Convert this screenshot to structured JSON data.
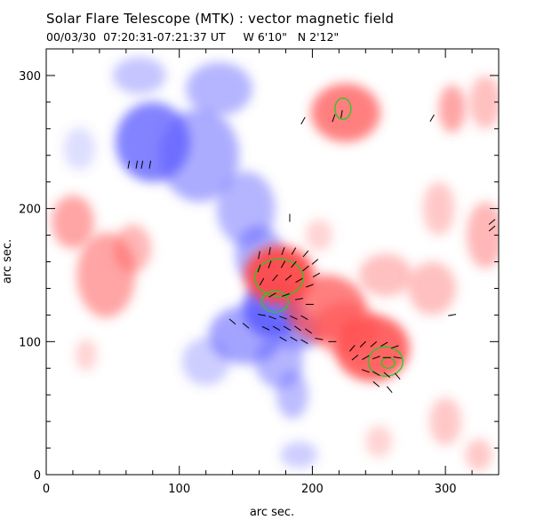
{
  "title": "Solar Flare Telescope (MTK) : vector magnetic field",
  "subtitle": "00/03/30  07:20:31-07:21:37 UT     W 6'10\"   N 2'12\"",
  "chart_data": {
    "type": "heatmap",
    "title": "Solar Flare Telescope (MTK) : vector magnetic field",
    "xlabel": "arc sec.",
    "ylabel": "arc sec.",
    "xlim": [
      0,
      340
    ],
    "ylim": [
      0,
      320
    ],
    "xticks": [
      0,
      100,
      200,
      300
    ],
    "yticks": [
      0,
      100,
      200,
      300
    ],
    "colors": {
      "positive": "#ff4a4a",
      "negative": "#5a5aff",
      "vectors": "#000000",
      "contour": "#22cc22"
    },
    "positive_regions": [
      {
        "x": 225,
        "y": 272,
        "rx": 26,
        "ry": 22,
        "a": 0.7
      },
      {
        "x": 305,
        "y": 275,
        "rx": 10,
        "ry": 18,
        "a": 0.5
      },
      {
        "x": 330,
        "y": 280,
        "rx": 12,
        "ry": 20,
        "a": 0.35
      },
      {
        "x": 20,
        "y": 190,
        "rx": 16,
        "ry": 20,
        "a": 0.5
      },
      {
        "x": 45,
        "y": 150,
        "rx": 22,
        "ry": 32,
        "a": 0.5
      },
      {
        "x": 65,
        "y": 170,
        "rx": 14,
        "ry": 18,
        "a": 0.4
      },
      {
        "x": 175,
        "y": 150,
        "rx": 26,
        "ry": 22,
        "a": 0.95
      },
      {
        "x": 210,
        "y": 125,
        "rx": 30,
        "ry": 25,
        "a": 0.7
      },
      {
        "x": 245,
        "y": 95,
        "rx": 28,
        "ry": 25,
        "a": 0.85
      },
      {
        "x": 225,
        "y": 110,
        "rx": 25,
        "ry": 20,
        "a": 0.5
      },
      {
        "x": 255,
        "y": 150,
        "rx": 20,
        "ry": 16,
        "a": 0.35
      },
      {
        "x": 290,
        "y": 140,
        "rx": 18,
        "ry": 20,
        "a": 0.35
      },
      {
        "x": 330,
        "y": 180,
        "rx": 14,
        "ry": 25,
        "a": 0.4
      },
      {
        "x": 295,
        "y": 200,
        "rx": 12,
        "ry": 20,
        "a": 0.3
      },
      {
        "x": 205,
        "y": 180,
        "rx": 10,
        "ry": 12,
        "a": 0.25
      },
      {
        "x": 300,
        "y": 40,
        "rx": 12,
        "ry": 18,
        "a": 0.3
      },
      {
        "x": 325,
        "y": 15,
        "rx": 10,
        "ry": 12,
        "a": 0.3
      },
      {
        "x": 250,
        "y": 25,
        "rx": 10,
        "ry": 12,
        "a": 0.25
      },
      {
        "x": 30,
        "y": 90,
        "rx": 8,
        "ry": 12,
        "a": 0.25
      }
    ],
    "negative_regions": [
      {
        "x": 80,
        "y": 250,
        "rx": 28,
        "ry": 30,
        "a": 0.75
      },
      {
        "x": 115,
        "y": 240,
        "rx": 30,
        "ry": 35,
        "a": 0.5
      },
      {
        "x": 70,
        "y": 300,
        "rx": 20,
        "ry": 14,
        "a": 0.35
      },
      {
        "x": 130,
        "y": 290,
        "rx": 25,
        "ry": 20,
        "a": 0.45
      },
      {
        "x": 150,
        "y": 200,
        "rx": 22,
        "ry": 28,
        "a": 0.45
      },
      {
        "x": 160,
        "y": 165,
        "rx": 18,
        "ry": 22,
        "a": 0.5
      },
      {
        "x": 170,
        "y": 125,
        "rx": 22,
        "ry": 22,
        "a": 0.85
      },
      {
        "x": 190,
        "y": 108,
        "rx": 16,
        "ry": 14,
        "a": 0.6
      },
      {
        "x": 150,
        "y": 105,
        "rx": 28,
        "ry": 22,
        "a": 0.55
      },
      {
        "x": 175,
        "y": 85,
        "rx": 18,
        "ry": 20,
        "a": 0.45
      },
      {
        "x": 185,
        "y": 60,
        "rx": 12,
        "ry": 18,
        "a": 0.4
      },
      {
        "x": 120,
        "y": 85,
        "rx": 18,
        "ry": 18,
        "a": 0.3
      },
      {
        "x": 190,
        "y": 15,
        "rx": 14,
        "ry": 10,
        "a": 0.3
      },
      {
        "x": 25,
        "y": 245,
        "rx": 12,
        "ry": 16,
        "a": 0.2
      }
    ],
    "contours": [
      {
        "x": 223,
        "y": 275,
        "rx": 6,
        "ry": 8
      },
      {
        "x": 175,
        "y": 148,
        "rx": 18,
        "ry": 14
      },
      {
        "x": 172,
        "y": 130,
        "rx": 10,
        "ry": 8
      },
      {
        "x": 255,
        "y": 85,
        "rx": 13,
        "ry": 11
      },
      {
        "x": 257,
        "y": 84,
        "rx": 5,
        "ry": 4
      }
    ],
    "vectors": [
      [
        62,
        233,
        80
      ],
      [
        68,
        233,
        80
      ],
      [
        72,
        233,
        80
      ],
      [
        78,
        233,
        80
      ],
      [
        193,
        266,
        60
      ],
      [
        216,
        268,
        70
      ],
      [
        222,
        271,
        80
      ],
      [
        290,
        268,
        60
      ],
      [
        183,
        193,
        90
      ],
      [
        160,
        165,
        80
      ],
      [
        168,
        168,
        80
      ],
      [
        178,
        168,
        70
      ],
      [
        186,
        168,
        60
      ],
      [
        195,
        166,
        50
      ],
      [
        202,
        160,
        40
      ],
      [
        160,
        155,
        70
      ],
      [
        168,
        158,
        70
      ],
      [
        178,
        158,
        60
      ],
      [
        186,
        158,
        50
      ],
      [
        195,
        155,
        40
      ],
      [
        203,
        150,
        30
      ],
      [
        162,
        145,
        60
      ],
      [
        172,
        148,
        50
      ],
      [
        182,
        148,
        40
      ],
      [
        190,
        146,
        30
      ],
      [
        198,
        142,
        20
      ],
      [
        170,
        135,
        30
      ],
      [
        180,
        135,
        20
      ],
      [
        190,
        132,
        10
      ],
      [
        198,
        128,
        0
      ],
      [
        162,
        120,
        -10
      ],
      [
        170,
        118,
        -20
      ],
      [
        178,
        118,
        -20
      ],
      [
        186,
        118,
        -25
      ],
      [
        194,
        118,
        -30
      ],
      [
        165,
        110,
        -25
      ],
      [
        173,
        110,
        -30
      ],
      [
        181,
        110,
        -30
      ],
      [
        189,
        110,
        -35
      ],
      [
        197,
        108,
        -35
      ],
      [
        178,
        102,
        -30
      ],
      [
        186,
        102,
        -30
      ],
      [
        194,
        100,
        -30
      ],
      [
        205,
        102,
        -10
      ],
      [
        215,
        100,
        0
      ],
      [
        140,
        115,
        -40
      ],
      [
        150,
        112,
        -40
      ],
      [
        230,
        95,
        50
      ],
      [
        238,
        98,
        45
      ],
      [
        246,
        98,
        40
      ],
      [
        254,
        98,
        30
      ],
      [
        262,
        96,
        20
      ],
      [
        232,
        88,
        40
      ],
      [
        240,
        88,
        30
      ],
      [
        248,
        88,
        20
      ],
      [
        256,
        88,
        0
      ],
      [
        264,
        88,
        -10
      ],
      [
        240,
        78,
        -20
      ],
      [
        248,
        76,
        -30
      ],
      [
        256,
        75,
        -40
      ],
      [
        264,
        74,
        -50
      ],
      [
        248,
        68,
        -40
      ],
      [
        258,
        64,
        -50
      ],
      [
        305,
        120,
        10
      ],
      [
        335,
        190,
        40
      ],
      [
        335,
        185,
        40
      ]
    ]
  }
}
